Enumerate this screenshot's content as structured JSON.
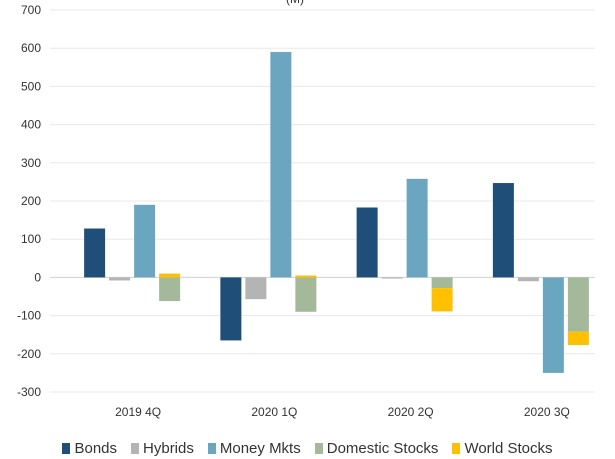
{
  "chart_data": {
    "type": "bar",
    "title_fragment": "(M)",
    "categories": [
      "2019 4Q",
      "2020 1Q",
      "2020 2Q",
      "2020 3Q"
    ],
    "ylim": [
      -300,
      700
    ],
    "yticks": [
      700,
      600,
      500,
      400,
      300,
      200,
      100,
      0,
      -100,
      -200,
      -300
    ],
    "grid": true,
    "legend_position": "bottom",
    "series": [
      {
        "name": "Bonds",
        "color": "#1f4e79",
        "values": [
          128,
          -165,
          183,
          247
        ]
      },
      {
        "name": "Hybrids",
        "color": "#b4b4b4",
        "values": [
          -8,
          -57,
          -3,
          -10
        ]
      },
      {
        "name": "Money Mkts",
        "color": "#6aa6bf",
        "values": [
          190,
          590,
          258,
          -250
        ]
      },
      {
        "name": "Domestic Stocks",
        "color": "#a3b99a",
        "values": [
          -62,
          -90,
          -28,
          -142
        ]
      },
      {
        "name": "World Stocks",
        "color": "#ffc000",
        "values": [
          10,
          5,
          -61,
          -35
        ]
      }
    ],
    "stacked_pairs": [
      [
        3,
        4
      ]
    ]
  }
}
